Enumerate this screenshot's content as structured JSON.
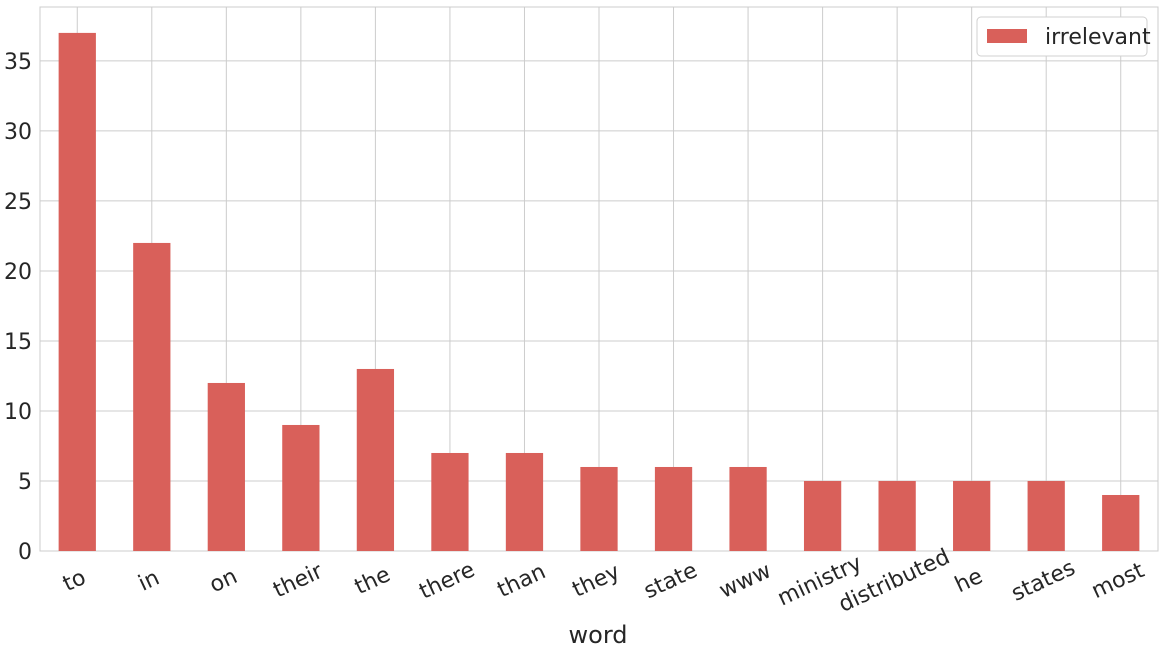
{
  "chart_data": {
    "type": "bar",
    "categories": [
      "to",
      "in",
      "on",
      "their",
      "the",
      "there",
      "than",
      "they",
      "state",
      "www",
      "ministry",
      "distributed",
      "he",
      "states",
      "most"
    ],
    "series": [
      {
        "name": "irrelevant",
        "values": [
          37,
          22,
          12,
          9,
          13,
          7,
          7,
          6,
          6,
          6,
          5,
          5,
          5,
          5,
          4
        ],
        "color": "#d9605a"
      }
    ],
    "xlabel": "word",
    "ylabel": "",
    "ylim": [
      0,
      38.85
    ],
    "yticks": [
      0,
      5,
      10,
      15,
      20,
      25,
      30,
      35
    ],
    "grid": true,
    "legend_position": "top-right",
    "x_tick_rotation_deg": -25
  }
}
